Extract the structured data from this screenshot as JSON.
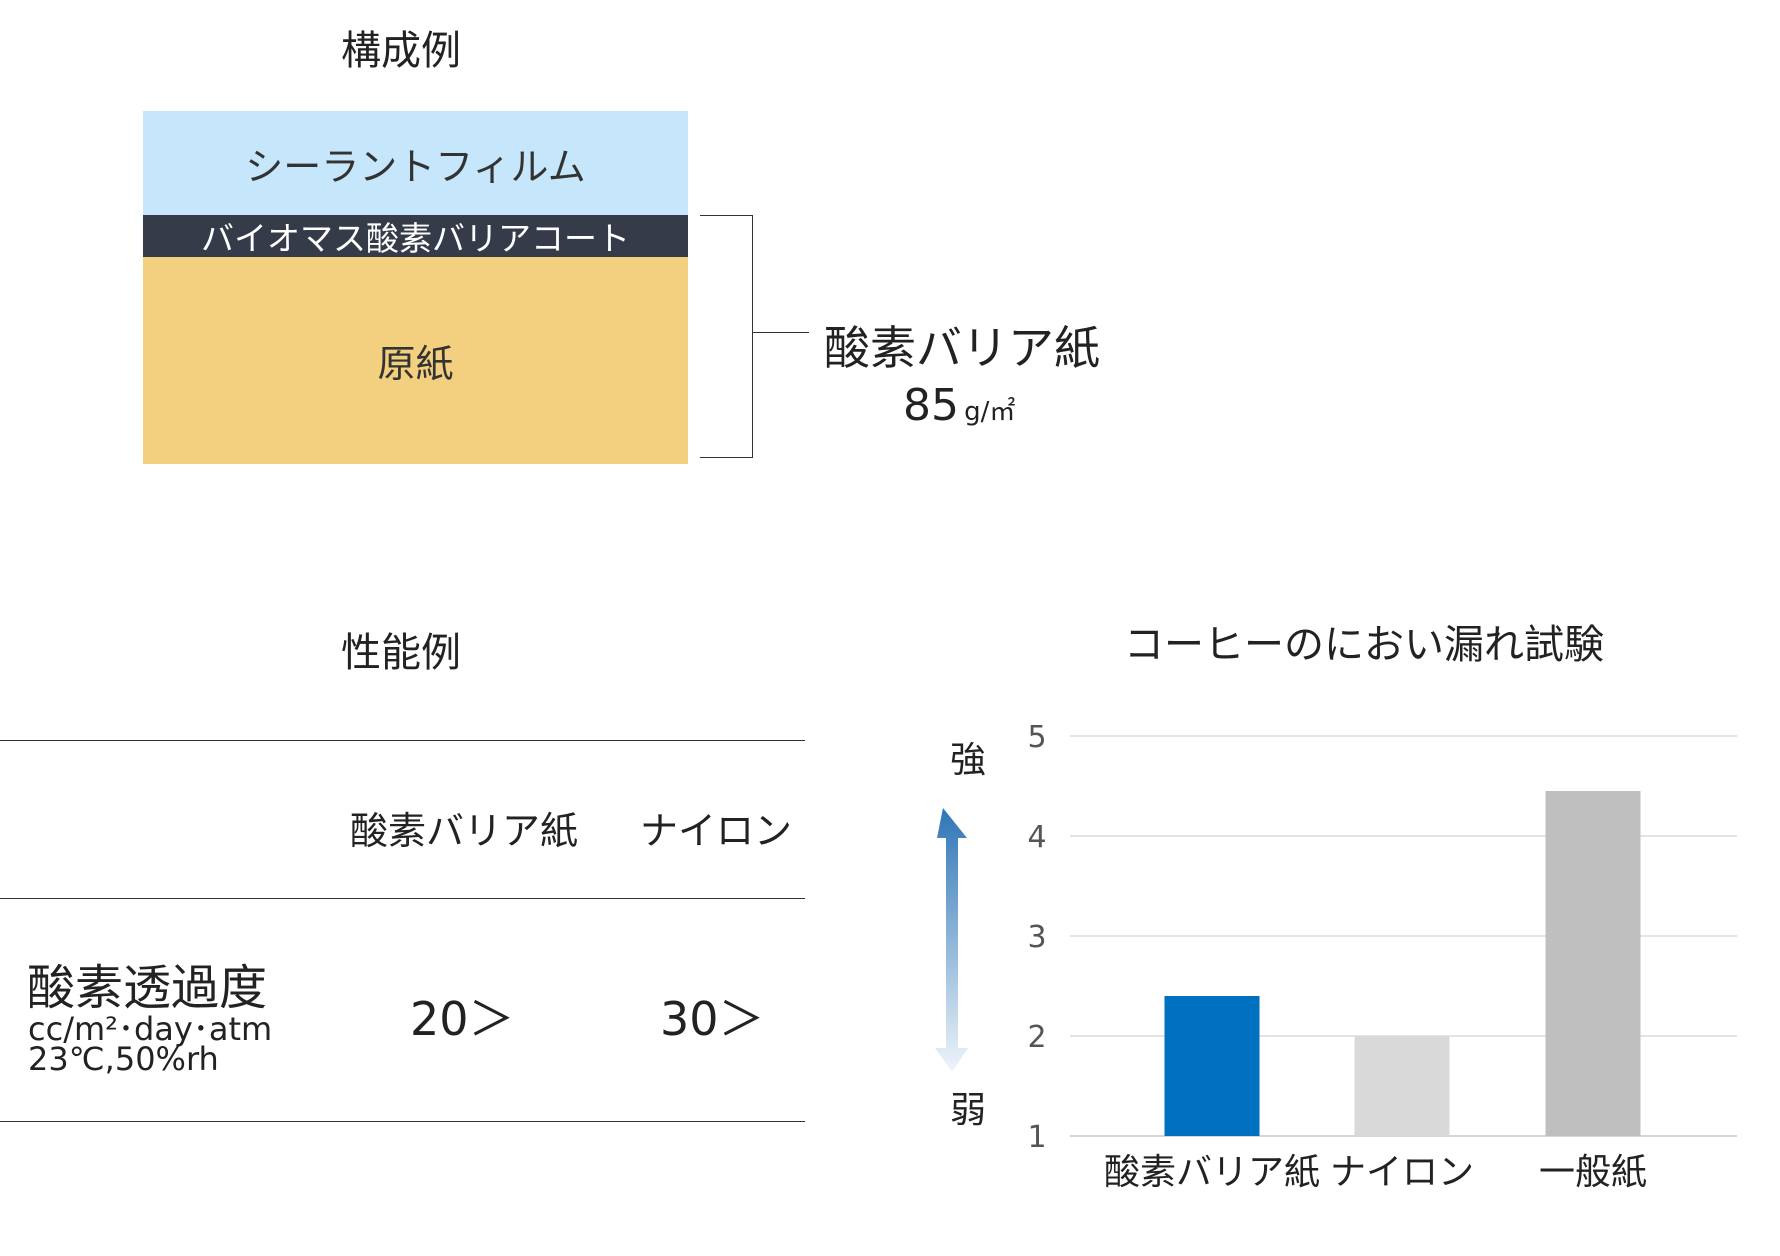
{
  "composition": {
    "title": "構成例",
    "layers": [
      {
        "label": "シーラントフィルム",
        "color": "#c6e6fb"
      },
      {
        "label": "バイオマス酸素バリアコート",
        "color": "#363b49"
      },
      {
        "label": "原紙",
        "color": "#f3cf80"
      }
    ],
    "product_name": "酸素バリア紙",
    "weight_value": "85",
    "weight_unit": "g/㎡"
  },
  "performance": {
    "title": "性能例",
    "columns": [
      "酸素バリア紙",
      "ナイロン"
    ],
    "row": {
      "label": "酸素透過度",
      "unit": "cc/m²･day･atm",
      "condition": "23℃,50%rh",
      "values": [
        "20＞",
        "30＞"
      ]
    }
  },
  "chart_data": {
    "type": "bar",
    "title": "コーヒーのにおい漏れ試験",
    "categories": [
      "酸素バリア紙",
      "ナイロン",
      "一般紙"
    ],
    "values": [
      2.4,
      2.0,
      4.45
    ],
    "colors": [
      "#0070c0",
      "#d9d9d9",
      "#bfbfbf"
    ],
    "ylim": [
      1,
      5
    ],
    "yticks": [
      1,
      2,
      3,
      4,
      5
    ],
    "grid": true,
    "scale_high_label": "強",
    "scale_low_label": "弱",
    "arrow_color": "#2e75b6"
  }
}
